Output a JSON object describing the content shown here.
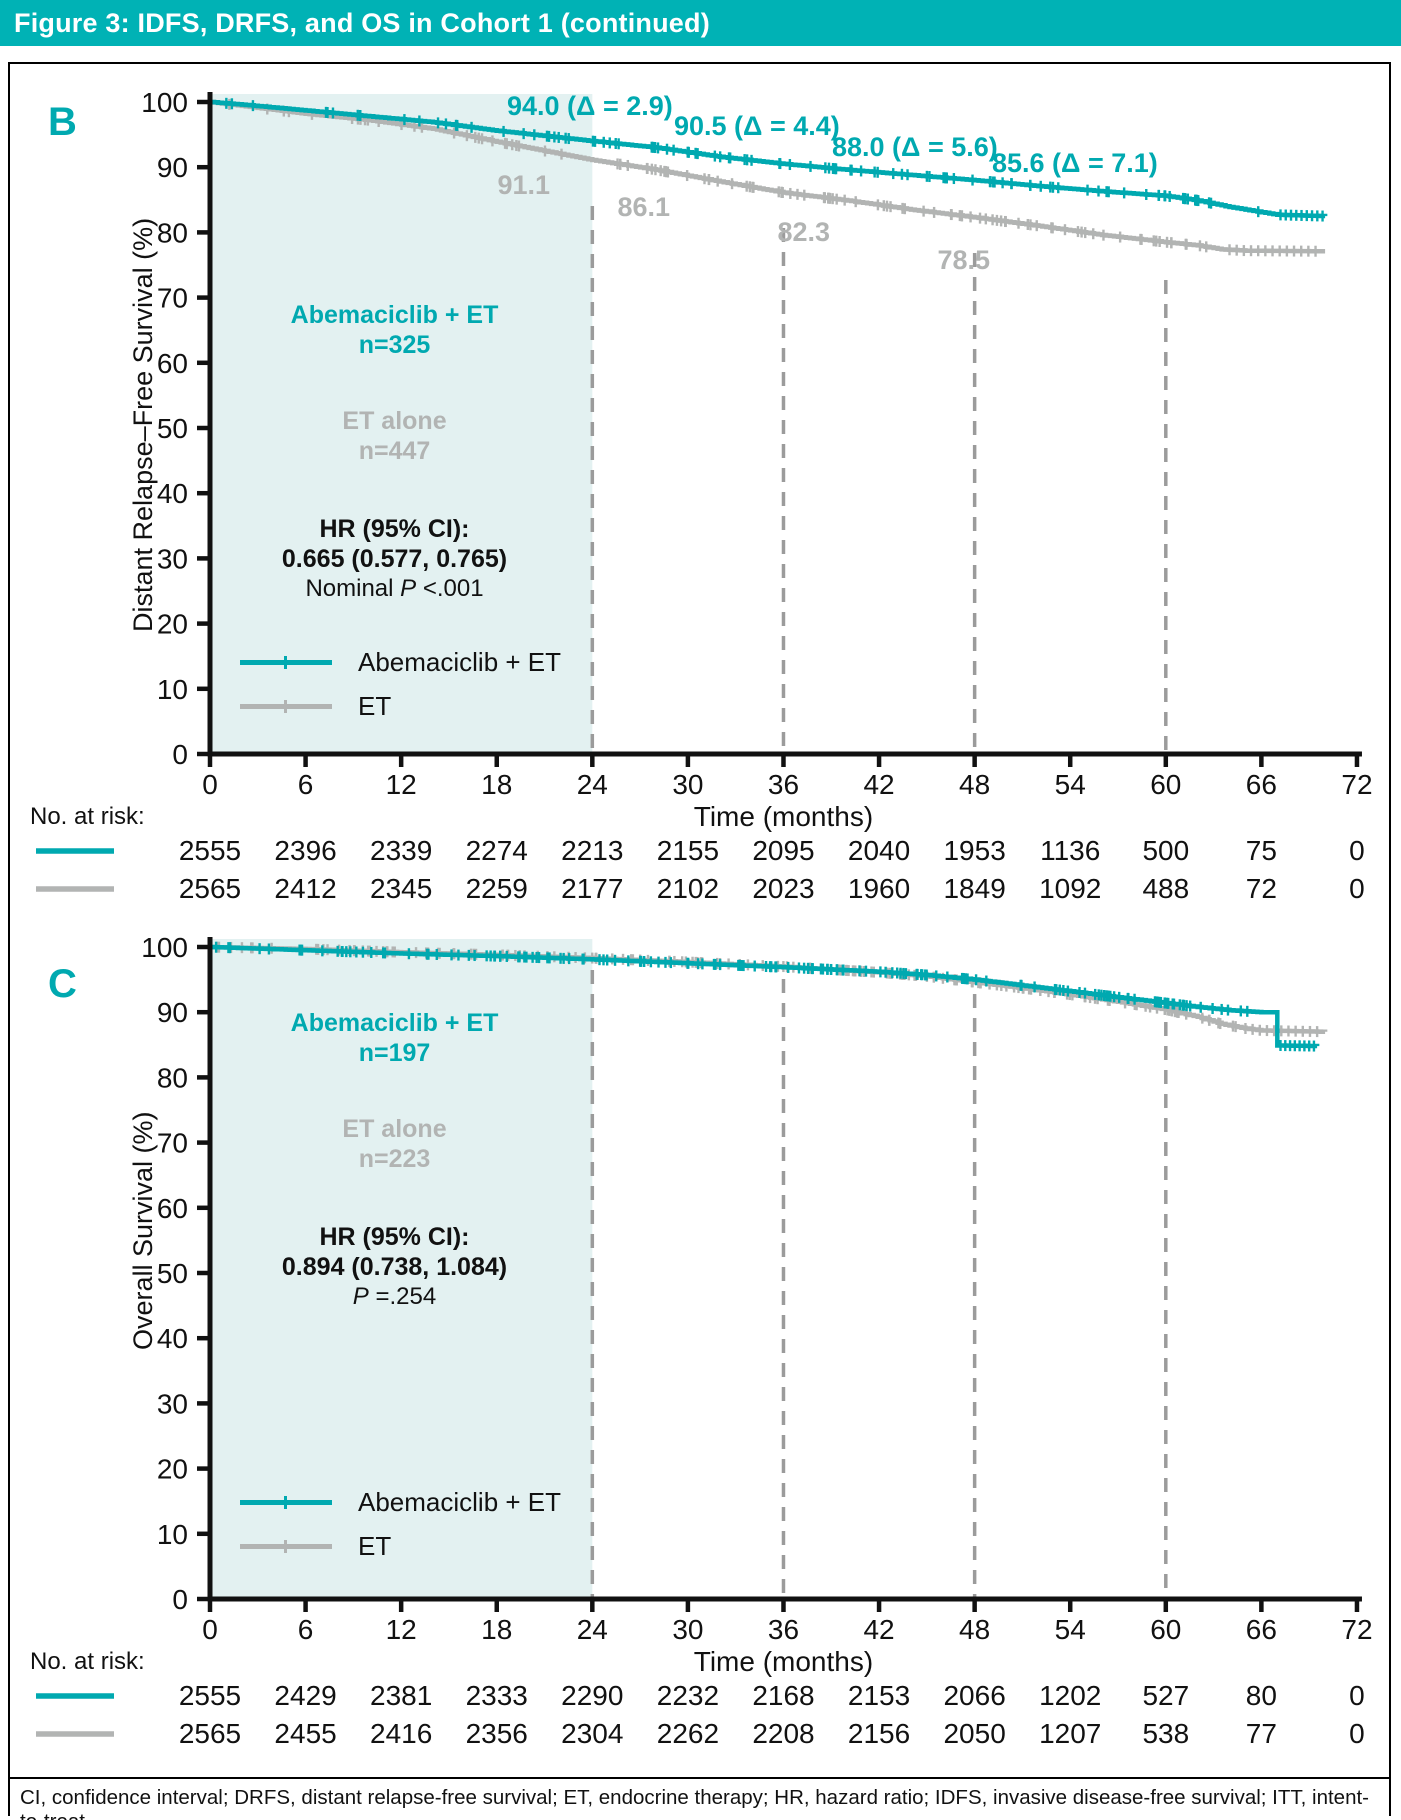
{
  "header": {
    "title": "Figure 3: IDFS, DRFS, and OS in Cohort 1 (continued)"
  },
  "footer": {
    "text": "CI, confidence interval; DRFS, distant relapse-free survival; ET, endocrine therapy; HR, hazard ratio; IDFS, invasive disease-free survival; ITT, intent-to-treat."
  },
  "colors": {
    "teal": "#00a9b0",
    "gray": "#b2b4b3",
    "header_teal": "#00b2b5",
    "shade": "#e3f1f1",
    "dash": "#9b9b9b",
    "axis": "#111111"
  },
  "chart_data": [
    {
      "panel": "B",
      "type": "line",
      "subtype": "kaplan-meier",
      "ylabel": "Distant Relapse–Free Survival (%)",
      "xlabel": "Time (months)",
      "xlim": [
        0,
        72
      ],
      "ylim": [
        0,
        100
      ],
      "xticks": [
        0,
        6,
        12,
        18,
        24,
        30,
        36,
        42,
        48,
        54,
        60,
        66,
        72
      ],
      "yticks": [
        100,
        90,
        80,
        70,
        60,
        50,
        40,
        30,
        20,
        10,
        0
      ],
      "shaded_region_months": [
        0,
        24
      ],
      "dashed_lines_months": [
        24,
        36,
        48,
        60
      ],
      "series": [
        {
          "name": "Abemaciclib + ET",
          "color": "#00a9b0",
          "points": [
            [
              0,
              100
            ],
            [
              2,
              99.6
            ],
            [
              6,
              98.7
            ],
            [
              10,
              97.8
            ],
            [
              14,
              96.9
            ],
            [
              18,
              95.6
            ],
            [
              21,
              94.8
            ],
            [
              24,
              94.0
            ],
            [
              28,
              93.0
            ],
            [
              32,
              91.6
            ],
            [
              36,
              90.5
            ],
            [
              40,
              89.6
            ],
            [
              44,
              88.8
            ],
            [
              48,
              88.0
            ],
            [
              52,
              87.1
            ],
            [
              56,
              86.3
            ],
            [
              60,
              85.6
            ],
            [
              62,
              84.9
            ],
            [
              64,
              83.9
            ],
            [
              66,
              83.1
            ],
            [
              67,
              82.7
            ],
            [
              70,
              82.5
            ]
          ]
        },
        {
          "name": "ET",
          "color": "#b2b4b3",
          "points": [
            [
              0,
              100
            ],
            [
              2,
              99.4
            ],
            [
              6,
              98.2
            ],
            [
              10,
              97.2
            ],
            [
              14,
              95.9
            ],
            [
              18,
              93.9
            ],
            [
              21,
              92.5
            ],
            [
              24,
              91.1
            ],
            [
              28,
              89.6
            ],
            [
              32,
              87.8
            ],
            [
              36,
              86.1
            ],
            [
              40,
              84.9
            ],
            [
              44,
              83.5
            ],
            [
              48,
              82.3
            ],
            [
              52,
              81.0
            ],
            [
              56,
              79.6
            ],
            [
              60,
              78.5
            ],
            [
              62,
              78.0
            ],
            [
              63.5,
              77.4
            ],
            [
              65,
              77.2
            ],
            [
              70,
              77.1
            ]
          ]
        }
      ],
      "landmarks": {
        "abemaciclib": [
          {
            "month": 24,
            "value": 94.0,
            "label": "94.0 (Δ = 2.9)"
          },
          {
            "month": 36,
            "value": 90.5,
            "label": "90.5 (Δ = 4.4)"
          },
          {
            "month": 48,
            "value": 88.0,
            "label": "88.0 (Δ = 5.6)"
          },
          {
            "month": 60,
            "value": 85.6,
            "label": "85.6 (Δ = 7.1)"
          }
        ],
        "et": [
          {
            "month": 24,
            "value": 91.1,
            "label": "91.1"
          },
          {
            "month": 36,
            "value": 86.1,
            "label": "86.1"
          },
          {
            "month": 48,
            "value": 82.3,
            "label": "82.3"
          },
          {
            "month": 60,
            "value": 78.5,
            "label": "78.5"
          }
        ]
      },
      "info_box": {
        "arm1": "Abemaciclib + ET",
        "arm1_n": "n=325",
        "arm2": "ET alone",
        "arm2_n": "n=447",
        "hr_title": "HR (95% CI):",
        "hr_value": "0.665 (0.577, 0.765)",
        "p_prefix": "Nominal ",
        "p_symbol": "P",
        "p_rest": " <.001"
      },
      "legend": [
        {
          "label": "Abemaciclib + ET",
          "color": "#00a9b0"
        },
        {
          "label": "ET",
          "color": "#b2b4b3"
        }
      ],
      "at_risk": {
        "label": "No. at risk:",
        "rows": [
          {
            "name": "Abemaciclib + ET",
            "color": "#00a9b0",
            "values": [
              "2555",
              "2396",
              "2339",
              "2274",
              "2213",
              "2155",
              "2095",
              "2040",
              "1953",
              "1136",
              "500",
              "75",
              "0"
            ]
          },
          {
            "name": "ET",
            "color": "#b2b4b3",
            "values": [
              "2565",
              "2412",
              "2345",
              "2259",
              "2177",
              "2102",
              "2023",
              "1960",
              "1849",
              "1092",
              "488",
              "72",
              "0"
            ]
          }
        ]
      }
    },
    {
      "panel": "C",
      "type": "line",
      "subtype": "kaplan-meier",
      "ylabel": "Overall Survival (%)",
      "xlabel": "Time (months)",
      "xlim": [
        0,
        72
      ],
      "ylim": [
        0,
        100
      ],
      "xticks": [
        0,
        6,
        12,
        18,
        24,
        30,
        36,
        42,
        48,
        54,
        60,
        66,
        72
      ],
      "yticks": [
        100,
        90,
        80,
        70,
        60,
        50,
        40,
        30,
        20,
        10,
        0
      ],
      "shaded_region_months": [
        0,
        24
      ],
      "dashed_lines_months": [
        24,
        36,
        48,
        60
      ],
      "series": [
        {
          "name": "Abemaciclib + ET",
          "color": "#00a9b0",
          "points": [
            [
              0,
              100
            ],
            [
              6,
              99.5
            ],
            [
              12,
              99.0
            ],
            [
              18,
              98.6
            ],
            [
              24,
              98.1
            ],
            [
              30,
              97.5
            ],
            [
              36,
              96.9
            ],
            [
              42,
              96.2
            ],
            [
              45,
              95.7
            ],
            [
              48,
              95.0
            ],
            [
              51,
              94.1
            ],
            [
              54,
              93.2
            ],
            [
              57,
              92.3
            ],
            [
              60,
              91.4
            ],
            [
              62,
              90.8
            ],
            [
              64,
              90.3
            ],
            [
              66,
              90.0
            ],
            [
              66.8,
              90.0
            ],
            [
              67,
              84.9
            ],
            [
              69.5,
              84.8
            ]
          ]
        },
        {
          "name": "ET",
          "color": "#b2b4b3",
          "points": [
            [
              0,
              100
            ],
            [
              6,
              99.7
            ],
            [
              12,
              99.2
            ],
            [
              18,
              98.8
            ],
            [
              24,
              98.3
            ],
            [
              30,
              97.7
            ],
            [
              36,
              97.0
            ],
            [
              42,
              96.1
            ],
            [
              45,
              95.5
            ],
            [
              48,
              94.6
            ],
            [
              51,
              93.7
            ],
            [
              54,
              92.7
            ],
            [
              57,
              91.6
            ],
            [
              60,
              90.4
            ],
            [
              62,
              89.3
            ],
            [
              63.5,
              88.2
            ],
            [
              65,
              87.5
            ],
            [
              66,
              87.2
            ],
            [
              70,
              87.0
            ]
          ]
        }
      ],
      "landmarks": {
        "abemaciclib": [],
        "et": []
      },
      "info_box": {
        "arm1": "Abemaciclib + ET",
        "arm1_n": "n=197",
        "arm2": "ET alone",
        "arm2_n": "n=223",
        "hr_title": "HR (95% CI):",
        "hr_value": "0.894 (0.738, 1.084)",
        "p_prefix": "",
        "p_symbol": "P",
        "p_rest": " =.254"
      },
      "legend": [
        {
          "label": "Abemaciclib + ET",
          "color": "#00a9b0"
        },
        {
          "label": "ET",
          "color": "#b2b4b3"
        }
      ],
      "at_risk": {
        "label": "No. at risk:",
        "rows": [
          {
            "name": "Abemaciclib + ET",
            "color": "#00a9b0",
            "values": [
              "2555",
              "2429",
              "2381",
              "2333",
              "2290",
              "2232",
              "2168",
              "2153",
              "2066",
              "1202",
              "527",
              "80",
              "0"
            ]
          },
          {
            "name": "ET",
            "color": "#b2b4b3",
            "values": [
              "2565",
              "2455",
              "2416",
              "2356",
              "2304",
              "2262",
              "2208",
              "2156",
              "2050",
              "1207",
              "538",
              "77",
              "0"
            ]
          }
        ]
      }
    }
  ]
}
